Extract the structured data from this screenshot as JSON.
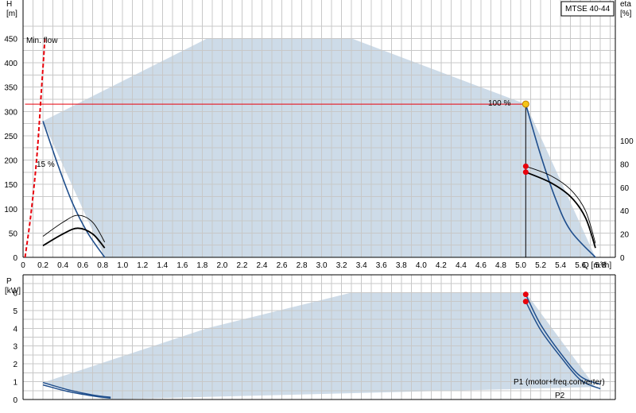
{
  "chart_data": [
    {
      "type": "line",
      "title": "MTSE 40-44",
      "xlabel": "Q [m³/h]",
      "ylabel_left": "H",
      "ylabel_left_unit": "[m]",
      "ylabel_right": "eta",
      "ylabel_right_unit": "[%]",
      "xlim": [
        0,
        5.95
      ],
      "ylim": [
        0,
        480
      ],
      "ylim_right": [
        0,
        100
      ],
      "x_ticks": [
        "0",
        "0.2",
        "0.4",
        "0.6",
        "0.8",
        "1.0",
        "1.2",
        "1.4",
        "1.6",
        "1.8",
        "2.0",
        "2.2",
        "2.4",
        "2.6",
        "2.8",
        "3.0",
        "3.2",
        "3.4",
        "3.6",
        "3.8",
        "4.0",
        "4.2",
        "4.4",
        "4.6",
        "4.8",
        "5.0",
        "5.2",
        "5.4",
        "5.6",
        "5.8"
      ],
      "y_ticks": [
        0,
        50,
        100,
        150,
        200,
        250,
        300,
        350,
        400,
        450
      ],
      "y_ticks_right": [
        0,
        20,
        40,
        60,
        80,
        100
      ],
      "grid": true,
      "operating_range": {
        "x": [
          0.2,
          1.85,
          3.3,
          5.05,
          5.75,
          0.82
        ],
        "y": [
          280,
          450,
          450,
          315,
          0,
          0
        ]
      },
      "series": [
        {
          "name": "Min. flow",
          "style": "dashed",
          "color": "#e8000b",
          "x": [
            0.02,
            0.08,
            0.14,
            0.19,
            0.22
          ],
          "y": [
            0,
            90,
            210,
            360,
            450
          ]
        },
        {
          "color": "#1f4e8c",
          "x": [
            0.2,
            0.35,
            0.5,
            0.65,
            0.82
          ],
          "y": [
            280,
            190,
            110,
            50,
            0
          ]
        },
        {
          "color": "#1f4e8c",
          "x": [
            5.05,
            5.2,
            5.35,
            5.5,
            5.75
          ],
          "y": [
            315,
            210,
            120,
            55,
            0
          ]
        },
        {
          "color": "#e8000b",
          "x": [
            0.02,
            5.05
          ],
          "y": [
            315,
            315
          ]
        },
        {
          "color": "#000000",
          "x": [
            5.05,
            5.05
          ],
          "y": [
            0,
            315
          ]
        }
      ],
      "efficiency_curves": [
        {
          "axis": "right",
          "x": [
            0.2,
            0.4,
            0.55,
            0.7,
            0.82
          ],
          "y": [
            18,
            30,
            36,
            30,
            13
          ]
        },
        {
          "axis": "right",
          "x": [
            0.2,
            0.4,
            0.55,
            0.7,
            0.82
          ],
          "y": [
            10,
            20,
            25,
            20,
            8
          ]
        },
        {
          "axis": "right",
          "x": [
            5.05,
            5.3,
            5.5,
            5.65,
            5.75
          ],
          "y": [
            78,
            70,
            58,
            40,
            12
          ]
        },
        {
          "axis": "right",
          "x": [
            5.05,
            5.3,
            5.5,
            5.65,
            5.75
          ],
          "y": [
            73,
            64,
            52,
            34,
            8
          ]
        }
      ],
      "markers": [
        {
          "x": 5.05,
          "y": 315,
          "color": "#f5c518",
          "axis": "left"
        },
        {
          "x": 5.05,
          "y": 78,
          "color": "#e8000b",
          "axis": "right"
        },
        {
          "x": 5.05,
          "y": 73,
          "color": "#e8000b",
          "axis": "right"
        }
      ],
      "annotations": [
        {
          "text": "Min. flow",
          "color": "#e8000b"
        },
        {
          "text": "100 %",
          "color": "#000000"
        },
        {
          "text": "15 %",
          "color": "#000000"
        }
      ]
    },
    {
      "type": "line",
      "ylabel": "P",
      "ylabel_unit": "[kW]",
      "xlim": [
        0,
        5.95
      ],
      "ylim": [
        0,
        7
      ],
      "y_ticks": [
        0,
        1,
        2,
        3,
        4,
        5,
        6
      ],
      "grid": true,
      "operating_range": {
        "x": [
          0.2,
          1.85,
          3.3,
          5.05,
          5.75,
          0.82
        ],
        "y": [
          0.95,
          4.0,
          6.0,
          6.0,
          0.7,
          0.0
        ]
      },
      "series": [
        {
          "name": "P1 (motor+freq.converter)",
          "color": "#1f4e8c",
          "x": [
            0.2,
            0.45,
            0.7,
            0.88
          ],
          "y": [
            0.95,
            0.55,
            0.25,
            0.12
          ]
        },
        {
          "name": "P2",
          "color": "#1f4e8c",
          "x": [
            0.2,
            0.45,
            0.7,
            0.88
          ],
          "y": [
            0.82,
            0.45,
            0.2,
            0.08
          ]
        },
        {
          "name": "P1 (motor+freq.converter)",
          "color": "#1f4e8c",
          "x": [
            5.05,
            5.2,
            5.4,
            5.6,
            5.8
          ],
          "y": [
            5.9,
            4.2,
            2.6,
            1.3,
            0.85
          ]
        },
        {
          "name": "P2",
          "color": "#1f4e8c",
          "x": [
            5.05,
            5.2,
            5.4,
            5.6,
            5.8
          ],
          "y": [
            5.5,
            3.9,
            2.4,
            1.1,
            0.6
          ]
        }
      ],
      "markers": [
        {
          "x": 5.05,
          "y": 5.9,
          "color": "#e8000b"
        },
        {
          "x": 5.05,
          "y": 5.5,
          "color": "#e8000b"
        }
      ],
      "annotations": [
        {
          "text": "P1 (motor+freq.converter)",
          "color": "#1f4e8c"
        },
        {
          "text": "P2",
          "color": "#1f4e8c"
        }
      ]
    }
  ]
}
